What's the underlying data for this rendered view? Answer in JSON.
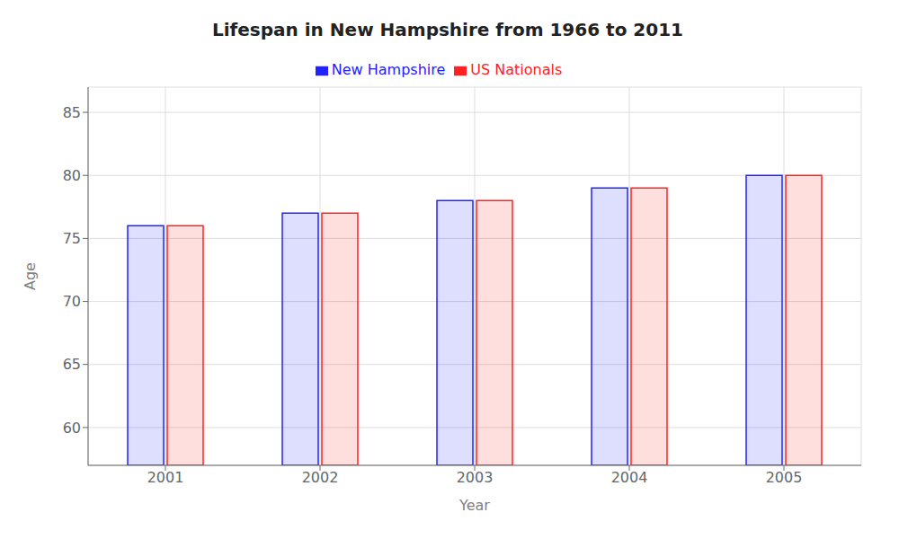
{
  "chart_data": {
    "type": "bar",
    "title": "Lifespan in New Hampshire from 1966 to 2011",
    "x_label": "Year",
    "y_label": "Age",
    "categories": [
      "2001",
      "2002",
      "2003",
      "2004",
      "2005"
    ],
    "series": [
      {
        "name": "New Hampshire",
        "color": "#2222ff",
        "values": [
          76,
          77,
          78,
          79,
          80
        ]
      },
      {
        "name": "US Nationals",
        "color": "#ff2222",
        "values": [
          76,
          77,
          78,
          79,
          80
        ]
      }
    ],
    "ylim": [
      57,
      87
    ],
    "yticks": [
      60,
      65,
      70,
      75,
      80,
      85
    ],
    "grid": true,
    "legend": "top"
  }
}
